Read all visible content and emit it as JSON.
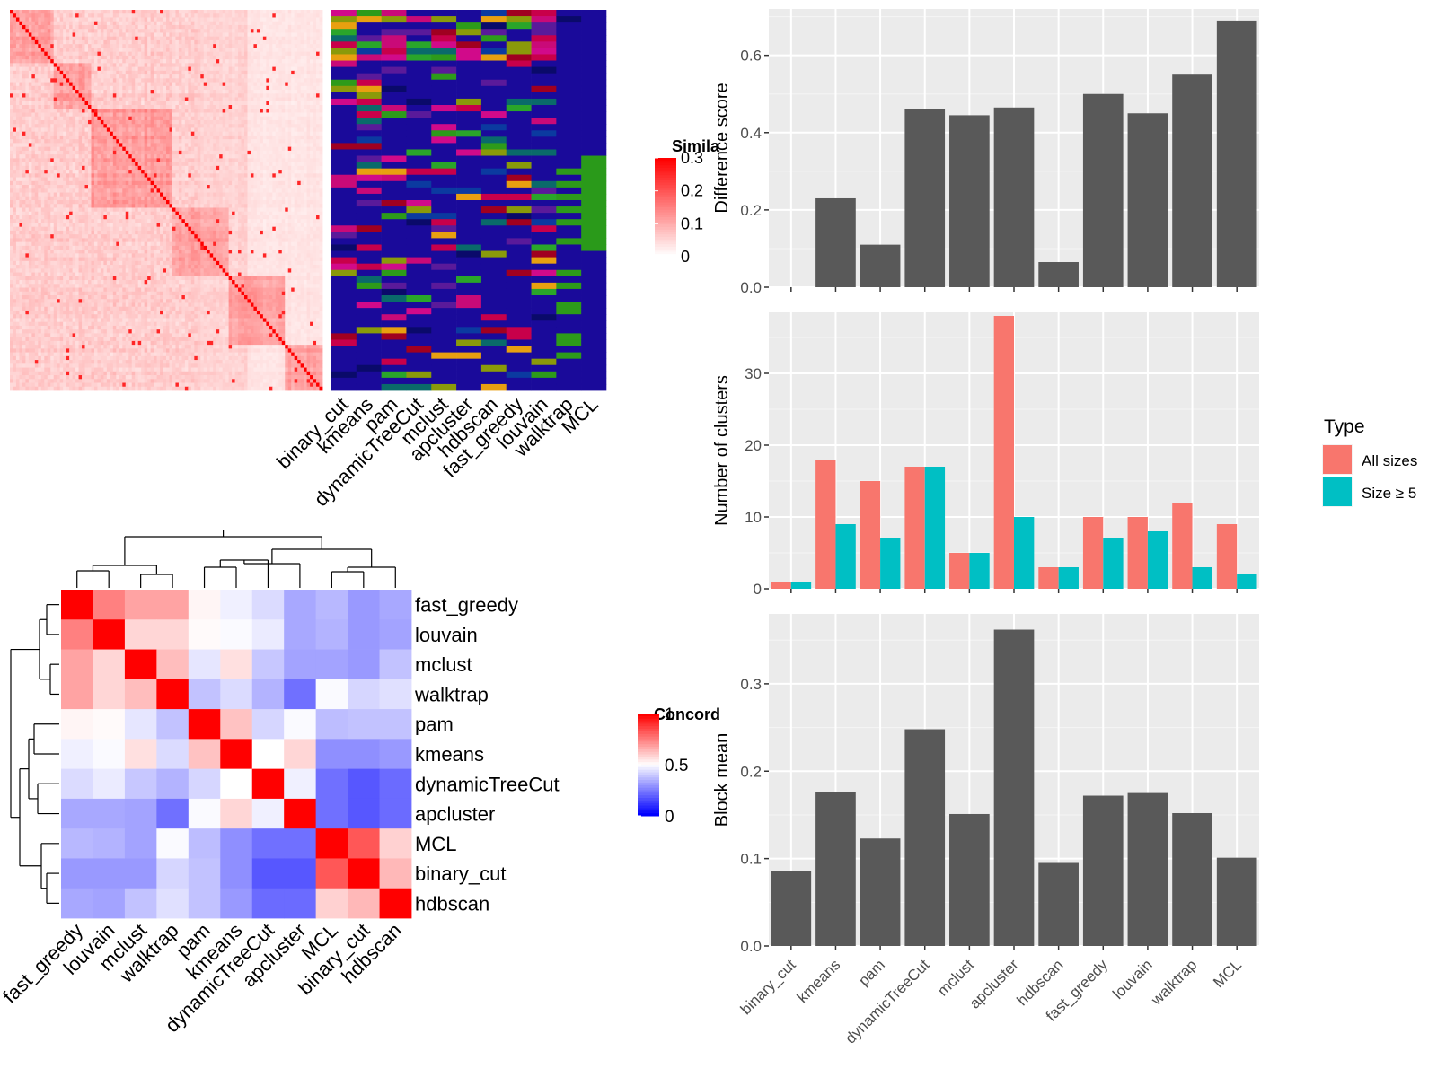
{
  "colors": {
    "panel_bg": "#ebebeb",
    "grid": "#ffffff",
    "bar_dark": "#595959",
    "all_sizes": "#f8766d",
    "size_ge_5": "#00bfc4",
    "heat_red": "#ff0000",
    "heat_white": "#ffffff",
    "heat_blue": "#0000ff",
    "cluster_navy": "#1a0a9a"
  },
  "chart_data": [
    {
      "id": "similarity_heatmap",
      "type": "heatmap",
      "title": "",
      "description": "Cell-by-cell similarity matrix (block diagonal) with per-method cluster assignment annotation columns",
      "annotation_columns": [
        "binary_cut",
        "kmeans",
        "pam",
        "dynamicTreeCut",
        "mclust",
        "apcluster",
        "hdbscan",
        "fast_greedy",
        "louvain",
        "walktrap",
        "MCL"
      ],
      "legend": {
        "title": "Similarity",
        "title_visible": "Simila",
        "ticks": [
          0.3,
          0.2,
          0.1,
          0
        ],
        "tick_labels": [
          "0.3",
          "0.2",
          "0.1",
          "0"
        ],
        "range": [
          0,
          0.3
        ]
      }
    },
    {
      "id": "concordance_heatmap",
      "type": "heatmap",
      "title": "",
      "rows": [
        "fast_greedy",
        "louvain",
        "mclust",
        "walktrap",
        "pam",
        "kmeans",
        "dynamicTreeCut",
        "apcluster",
        "MCL",
        "binary_cut",
        "hdbscan"
      ],
      "cols": [
        "fast_greedy",
        "louvain",
        "mclust",
        "walktrap",
        "pam",
        "kmeans",
        "dynamicTreeCut",
        "apcluster",
        "MCL",
        "binary_cut",
        "hdbscan"
      ],
      "values": [
        [
          1.0,
          0.75,
          0.68,
          0.68,
          0.52,
          0.47,
          0.43,
          0.33,
          0.36,
          0.3,
          0.33
        ],
        [
          0.75,
          1.0,
          0.58,
          0.58,
          0.51,
          0.49,
          0.46,
          0.33,
          0.35,
          0.3,
          0.32
        ],
        [
          0.68,
          0.58,
          1.0,
          0.63,
          0.45,
          0.56,
          0.39,
          0.32,
          0.32,
          0.3,
          0.38
        ],
        [
          0.68,
          0.58,
          0.63,
          1.0,
          0.38,
          0.43,
          0.35,
          0.22,
          0.49,
          0.42,
          0.44
        ],
        [
          0.52,
          0.51,
          0.45,
          0.38,
          1.0,
          0.62,
          0.42,
          0.49,
          0.37,
          0.38,
          0.38
        ],
        [
          0.47,
          0.49,
          0.56,
          0.43,
          0.62,
          1.0,
          0.5,
          0.58,
          0.28,
          0.28,
          0.3
        ],
        [
          0.43,
          0.46,
          0.39,
          0.35,
          0.42,
          0.5,
          1.0,
          0.47,
          0.22,
          0.17,
          0.21
        ],
        [
          0.33,
          0.33,
          0.32,
          0.22,
          0.49,
          0.58,
          0.47,
          1.0,
          0.22,
          0.17,
          0.21
        ],
        [
          0.36,
          0.35,
          0.32,
          0.49,
          0.37,
          0.28,
          0.22,
          0.22,
          1.0,
          0.83,
          0.59
        ],
        [
          0.3,
          0.3,
          0.3,
          0.42,
          0.38,
          0.28,
          0.17,
          0.17,
          0.83,
          1.0,
          0.64
        ],
        [
          0.33,
          0.32,
          0.38,
          0.44,
          0.38,
          0.3,
          0.21,
          0.21,
          0.59,
          0.64,
          1.0
        ]
      ],
      "legend": {
        "title": "Concordance",
        "title_visible": "Concord",
        "ticks": [
          1,
          0.5,
          0
        ],
        "tick_labels": [
          "1",
          "0.5",
          "0"
        ],
        "range": [
          0,
          1
        ]
      },
      "dendrogram": "hierarchical clustering on rows and columns"
    },
    {
      "id": "difference_score",
      "type": "bar",
      "categories": [
        "binary_cut",
        "kmeans",
        "pam",
        "dynamicTreeCut",
        "mclust",
        "apcluster",
        "hdbscan",
        "fast_greedy",
        "louvain",
        "walktrap",
        "MCL"
      ],
      "values": [
        0.0,
        0.23,
        0.11,
        0.46,
        0.445,
        0.465,
        0.065,
        0.5,
        0.45,
        0.55,
        0.69
      ],
      "ylabel": "Difference score",
      "ylim": [
        0,
        0.72
      ],
      "yticks": [
        0.0,
        0.2,
        0.4,
        0.6
      ],
      "ytick_labels": [
        "0.0",
        "0.2",
        "0.4",
        "0.6"
      ],
      "grid": true
    },
    {
      "id": "number_of_clusters",
      "type": "bar",
      "categories": [
        "binary_cut",
        "kmeans",
        "pam",
        "dynamicTreeCut",
        "mclust",
        "apcluster",
        "hdbscan",
        "fast_greedy",
        "louvain",
        "walktrap",
        "MCL"
      ],
      "series": [
        {
          "name": "All sizes",
          "values": [
            1,
            18,
            15,
            17,
            5,
            38,
            3,
            10,
            10,
            12,
            9
          ]
        },
        {
          "name": "Size ≥ 5",
          "values": [
            1,
            9,
            7,
            17,
            5,
            10,
            3,
            7,
            8,
            3,
            2
          ]
        }
      ],
      "ylabel": "Number of clusters",
      "ylim": [
        0,
        38.5
      ],
      "yticks": [
        0,
        10,
        20,
        30
      ],
      "ytick_labels": [
        "0",
        "10",
        "20",
        "30"
      ],
      "legend_title": "Type",
      "legend_position": "right",
      "grid": true
    },
    {
      "id": "block_mean",
      "type": "bar",
      "categories": [
        "binary_cut",
        "kmeans",
        "pam",
        "dynamicTreeCut",
        "mclust",
        "apcluster",
        "hdbscan",
        "fast_greedy",
        "louvain",
        "walktrap",
        "MCL"
      ],
      "values": [
        0.086,
        0.176,
        0.123,
        0.248,
        0.151,
        0.362,
        0.095,
        0.172,
        0.175,
        0.152,
        0.101
      ],
      "ylabel": "Block mean",
      "ylim": [
        0,
        0.38
      ],
      "yticks": [
        0.0,
        0.1,
        0.2,
        0.3
      ],
      "ytick_labels": [
        "0.0",
        "0.1",
        "0.2",
        "0.3"
      ],
      "grid": true
    }
  ]
}
